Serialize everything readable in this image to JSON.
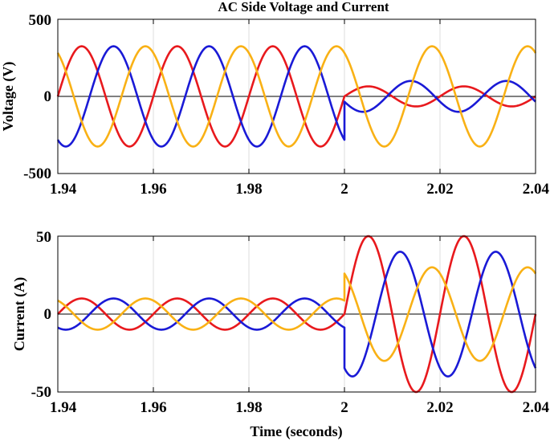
{
  "chart_data": [
    {
      "type": "line",
      "title": "AC Side Voltage and Current",
      "xlabel": "",
      "ylabel": "Voltage (V)",
      "xlim": [
        1.94,
        2.04
      ],
      "ylim": [
        -500,
        500
      ],
      "xticks": [
        1.94,
        1.96,
        1.98,
        2,
        2.02,
        2.04
      ],
      "xtick_labels": [
        "1.94",
        "1.96",
        "1.98",
        "2",
        "2.02",
        "2.04"
      ],
      "yticks": [
        -500,
        0,
        500
      ],
      "ytick_labels": [
        "-500",
        "0",
        "500"
      ],
      "grid": true,
      "legend": "none",
      "frequency_hz": 50,
      "event_time": 2.0,
      "series": [
        {
          "color": "#e8191d",
          "phase_deg": 0,
          "amplitude_before": 325,
          "amplitude_after": 65,
          "phase_after_deg": 0
        },
        {
          "color": "#1a1ad6",
          "phase_deg": -120,
          "amplitude_before": 325,
          "amplitude_after": 100,
          "phase_after_deg": -160
        },
        {
          "color": "#f9b115",
          "phase_deg": 120,
          "amplitude_before": 325,
          "amplitude_after": 325,
          "phase_after_deg": 120
        }
      ]
    },
    {
      "type": "line",
      "title": "",
      "xlabel": "Time (seconds)",
      "ylabel": "Current (A)",
      "xlim": [
        1.94,
        2.04
      ],
      "ylim": [
        -50,
        50
      ],
      "xticks": [
        1.94,
        1.96,
        1.98,
        2,
        2.02,
        2.04
      ],
      "xtick_labels": [
        "1.94",
        "1.96",
        "1.98",
        "2",
        "2.02",
        "2.04"
      ],
      "yticks": [
        -50,
        0,
        50
      ],
      "ytick_labels": [
        "-50",
        "0",
        "50"
      ],
      "grid": true,
      "legend": "none",
      "frequency_hz": 50,
      "event_time": 2.0,
      "series": [
        {
          "color": "#e8191d",
          "phase_deg": 0,
          "amplitude_before": 10,
          "amplitude_after": 50,
          "phase_after_deg": 0
        },
        {
          "color": "#1a1ad6",
          "phase_deg": -120,
          "amplitude_before": 10,
          "amplitude_after": 40,
          "phase_after_deg": -120
        },
        {
          "color": "#f9b115",
          "phase_deg": 120,
          "amplitude_before": 10,
          "amplitude_after": 30,
          "phase_after_deg": 120
        }
      ]
    }
  ]
}
